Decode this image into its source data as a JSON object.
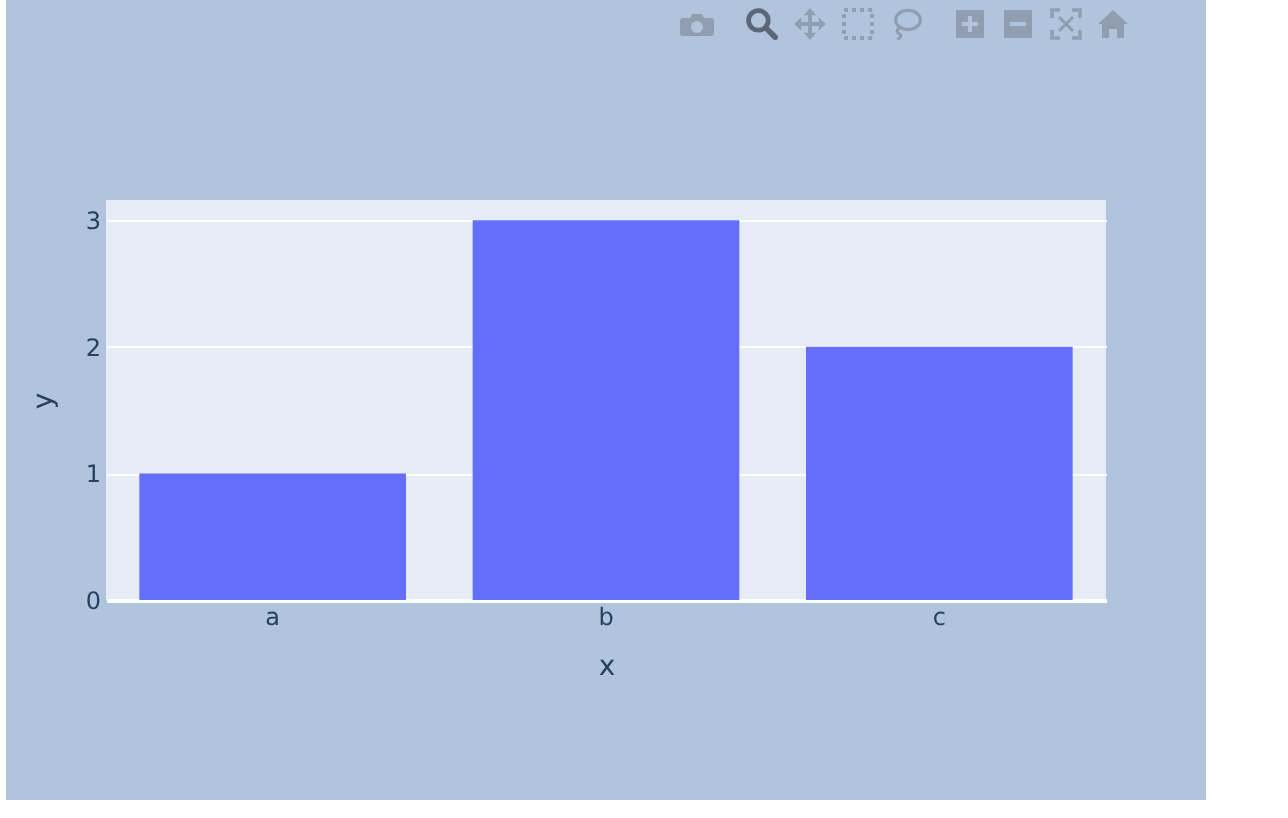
{
  "chart_data": {
    "type": "bar",
    "categories": [
      "a",
      "b",
      "c"
    ],
    "values": [
      1,
      3,
      2
    ],
    "color": "#636efa",
    "xlabel": "x",
    "ylabel": "y",
    "ylim": [
      0,
      3.16
    ],
    "yticks": [
      0,
      1,
      2,
      3
    ],
    "grid": "y"
  }
}
